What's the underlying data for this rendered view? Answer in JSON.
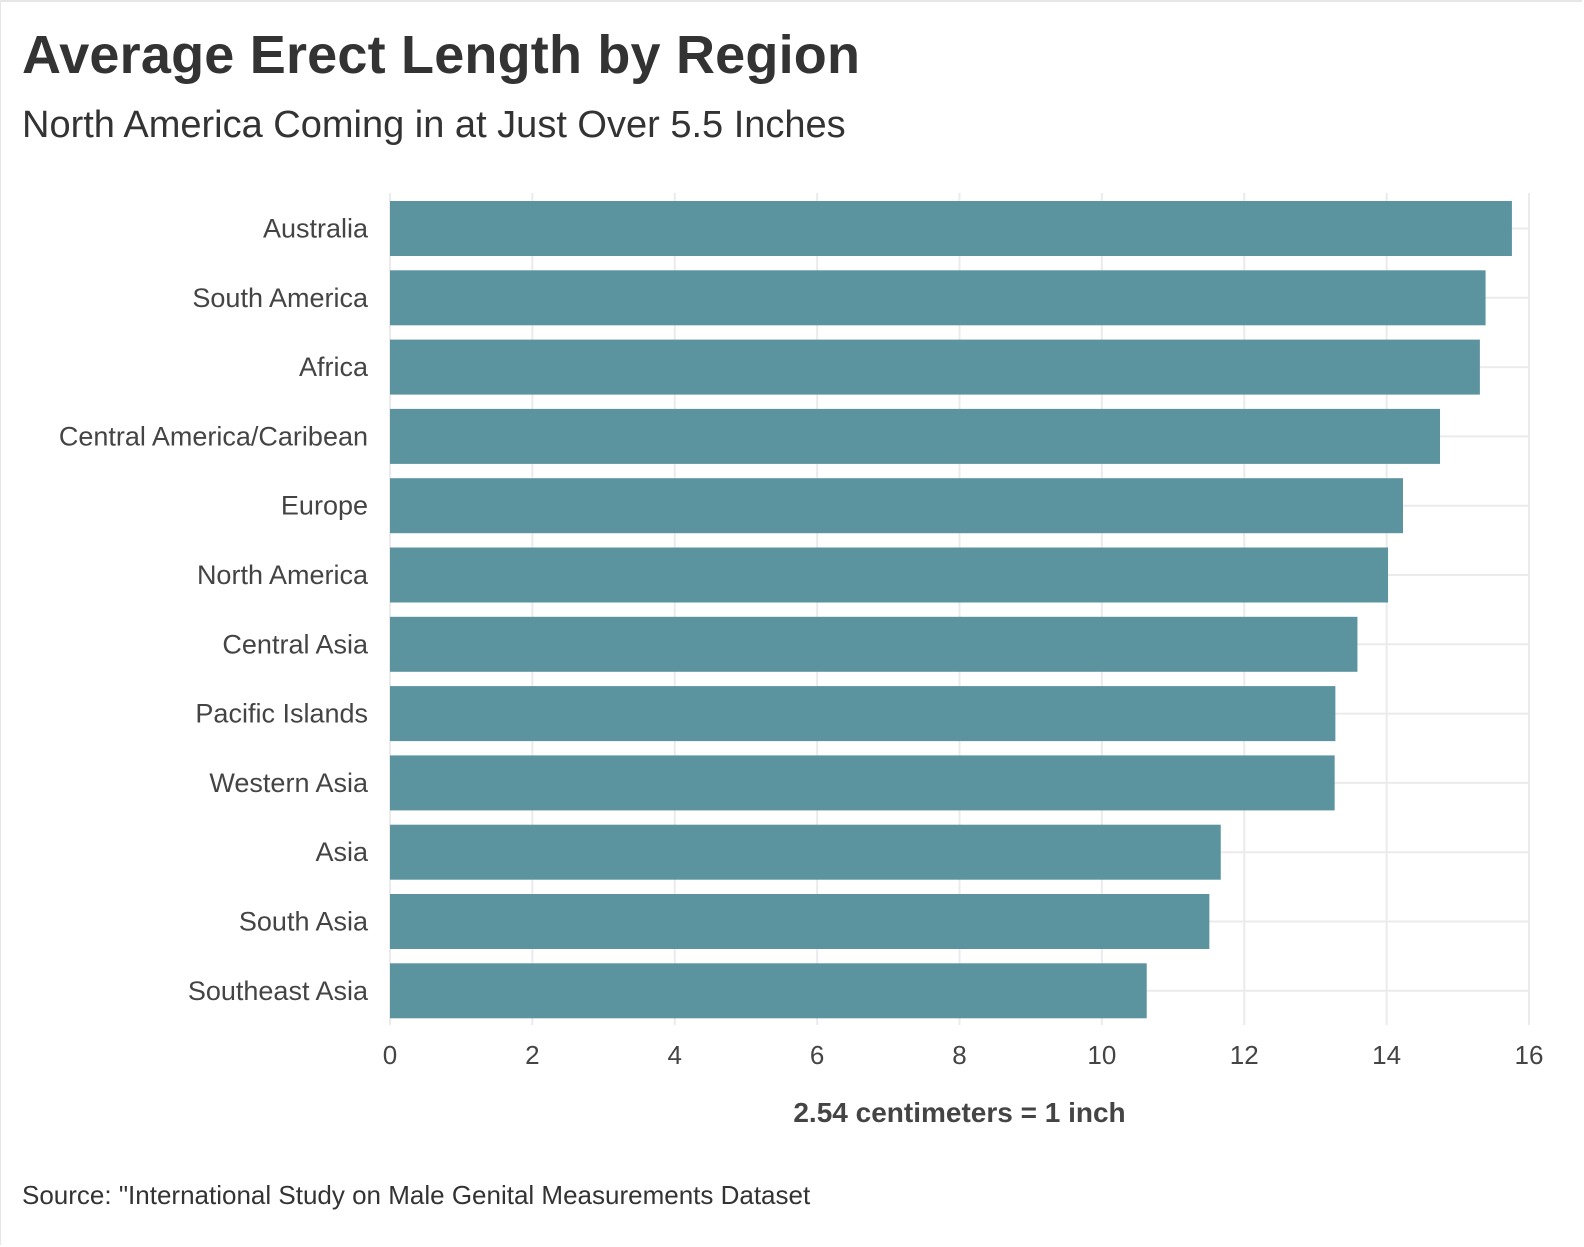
{
  "chart_data": {
    "type": "bar",
    "orientation": "horizontal",
    "title": "Average Erect Length by Region",
    "subtitle": "North America Coming in at Just Over 5.5 Inches",
    "xlabel": "2.54 centimeters = 1 inch",
    "ylabel": "",
    "caption": "Source: \"International Study on Male Genital Measurements Dataset",
    "categories": [
      "Australia",
      "South America",
      "Africa",
      "Central America/Caribean",
      "Europe",
      "North America",
      "Central Asia",
      "Pacific Islands",
      "Western Asia",
      "Asia",
      "South Asia",
      "Southeast Asia"
    ],
    "values": [
      15.76,
      15.39,
      15.31,
      14.75,
      14.23,
      14.02,
      13.59,
      13.28,
      13.27,
      11.67,
      11.51,
      10.63
    ],
    "xlim": [
      0,
      16
    ],
    "xticks": [
      0,
      2,
      4,
      6,
      8,
      10,
      12,
      14,
      16
    ],
    "grid": true,
    "legend": "none",
    "bar_color": "#5b949f",
    "grid_color": "#ebebeb"
  }
}
